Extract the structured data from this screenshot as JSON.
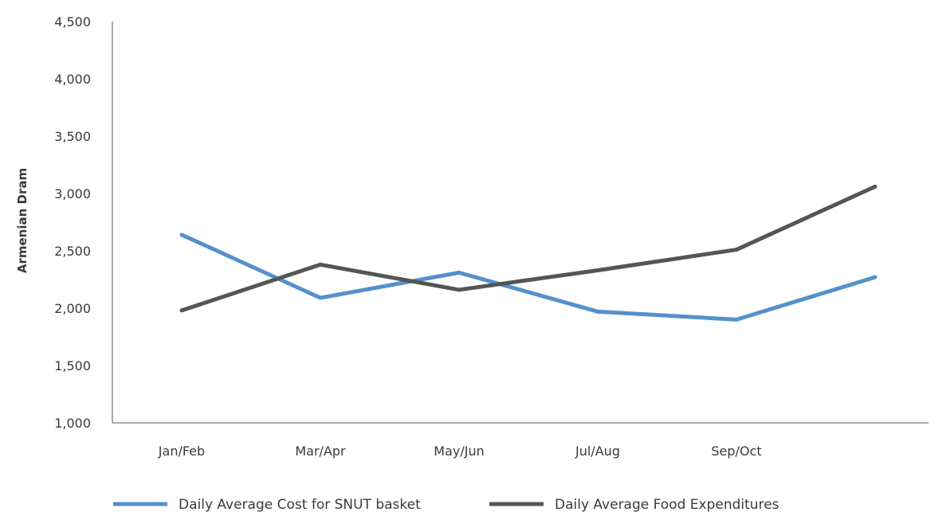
{
  "chart_data": {
    "type": "line",
    "title": "",
    "xlabel": "",
    "ylabel": "Armenian Dram",
    "categories": [
      "Jan/Feb",
      "Mar/Apr",
      "May/Jun",
      "Jul/Aug",
      "Sep/Oct",
      ""
    ],
    "ylim": [
      1000,
      4500
    ],
    "yticks": [
      1000,
      1500,
      2000,
      2500,
      3000,
      3500,
      4000,
      4500
    ],
    "ytick_labels": [
      "1,000",
      "1,500",
      "2,000",
      "2,500",
      "3,000",
      "3,500",
      "4,000",
      "4,500"
    ],
    "grid": false,
    "legend_position": "bottom",
    "series": [
      {
        "name": "Daily Average Cost for SNUT basket",
        "color": "#5590cc",
        "values": [
          2640,
          2090,
          2310,
          1970,
          1900,
          2270
        ]
      },
      {
        "name": "Daily Average Food Expenditures",
        "color": "#555555",
        "values": [
          1980,
          2380,
          2160,
          2330,
          2510,
          3060
        ]
      }
    ]
  }
}
